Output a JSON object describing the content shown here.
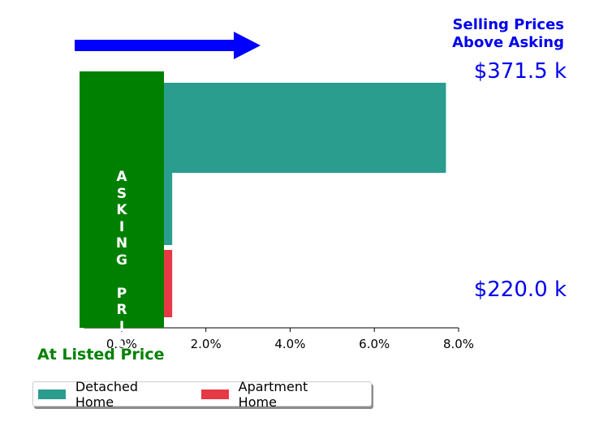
{
  "header": {
    "selling_line1": "Selling Prices",
    "selling_line2": "Above Asking"
  },
  "labels": {
    "asking_price": "A\nS\nK\nI\nN\nG\n\nP\nR\nI\nC\nE",
    "listed_price": "At Listed Price",
    "detached_price": "$371.5 k",
    "apartment_price": "$220.0 k"
  },
  "colors": {
    "detached": "#2a9d8f",
    "apartment": "#e63946",
    "asking_box": "#008000",
    "arrow": "#0000ff",
    "price_text": "#0000ee"
  },
  "chart_data": {
    "type": "bar",
    "orientation": "horizontal",
    "xlim": [
      -1.0,
      8.0
    ],
    "xticks": [
      0,
      2,
      4,
      6,
      8
    ],
    "xtick_labels": [
      "0.0%",
      "2.0%",
      "4.0%",
      "6.0%",
      "8.0%"
    ],
    "series": [
      {
        "name": "Detached Home",
        "bars": [
          {
            "start": -1.0,
            "end": 7.7
          },
          {
            "start": -1.0,
            "end": 1.2
          }
        ]
      },
      {
        "name": "Apartment Home",
        "bars": [
          {
            "start": -1.0,
            "end": 1.2
          }
        ]
      }
    ],
    "legend_position": "bottom-left"
  }
}
